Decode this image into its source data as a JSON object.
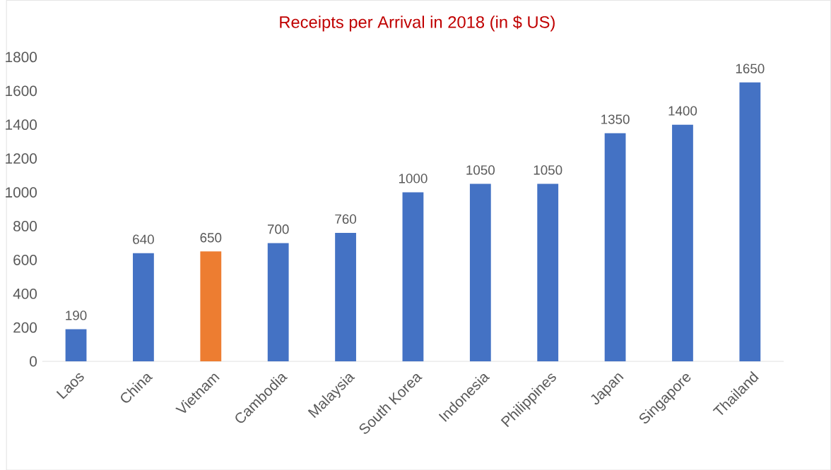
{
  "chart_data": {
    "type": "bar",
    "title": "Receipts per Arrival in 2018 (in $ US)",
    "categories": [
      "Laos",
      "China",
      "Vietnam",
      "Cambodia",
      "Malaysia",
      "South Korea",
      "Indonesia",
      "Philippines",
      "Japan",
      "Singapore",
      "Thailand"
    ],
    "values": [
      190,
      640,
      650,
      700,
      760,
      1000,
      1050,
      1050,
      1350,
      1400,
      1650
    ],
    "colors": [
      "#4472c4",
      "#4472c4",
      "#ed7d31",
      "#4472c4",
      "#4472c4",
      "#4472c4",
      "#4472c4",
      "#4472c4",
      "#4472c4",
      "#4472c4",
      "#4472c4"
    ],
    "ylim": [
      0,
      1800
    ],
    "yticks": [
      0,
      200,
      400,
      600,
      800,
      1000,
      1200,
      1400,
      1600,
      1800
    ],
    "data_labels": true
  }
}
